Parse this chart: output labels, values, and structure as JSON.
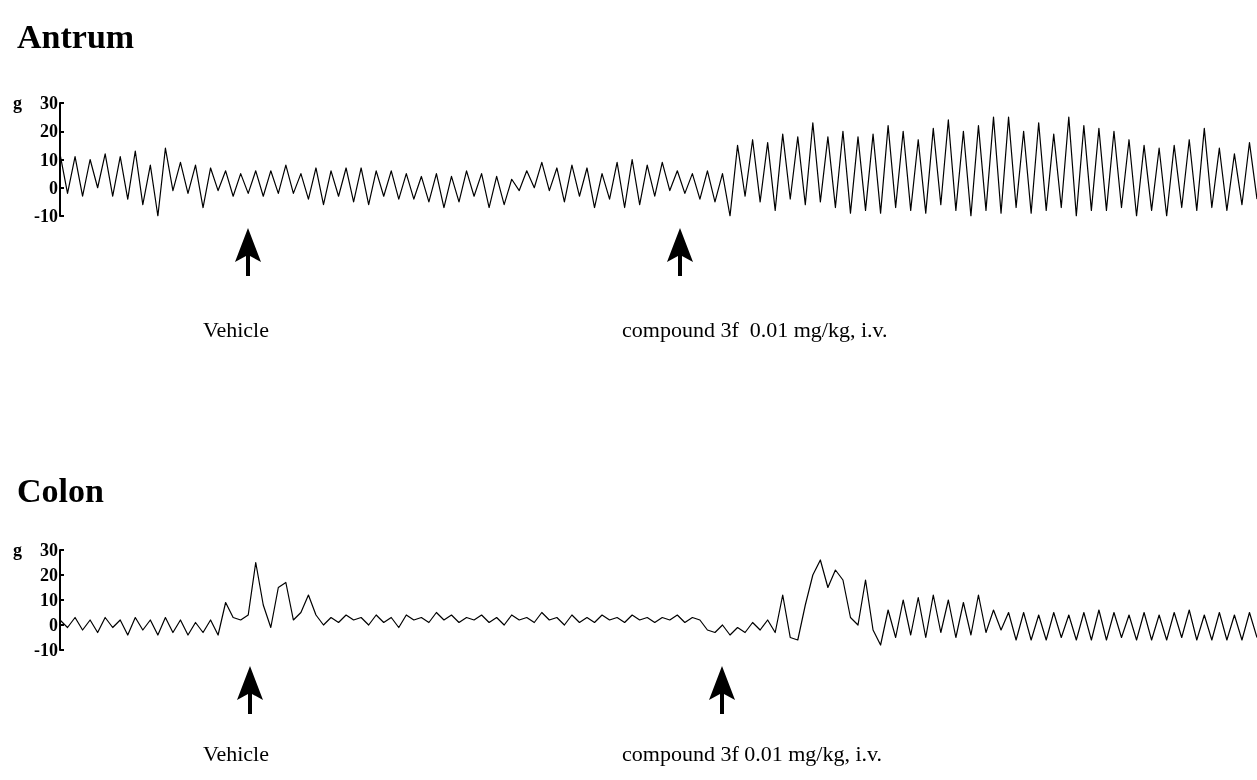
{
  "chart_data": [
    {
      "type": "line",
      "title": "Antrum",
      "ylabel": "g",
      "ylim": [
        -10,
        30
      ],
      "yticks": [
        -10,
        0,
        10,
        20,
        30
      ],
      "grid": false,
      "tick_labels": "y",
      "annotations": [
        "Vehicle",
        "compound 3f  0.01 mg/kg, i.v."
      ],
      "categories": [
        null,
        null,
        null,
        null,
        null,
        null,
        null,
        null,
        null,
        null,
        null,
        null,
        null,
        null,
        null,
        null,
        null,
        null,
        null,
        null,
        null,
        null,
        null,
        null,
        null,
        null,
        null,
        null,
        null,
        null,
        null,
        null,
        null,
        null,
        null,
        null,
        null,
        null,
        null,
        null,
        null,
        null,
        null,
        null,
        null,
        null,
        null,
        null,
        null,
        null,
        null,
        null,
        null,
        null,
        null,
        null,
        null,
        null,
        null,
        null,
        null,
        null,
        null,
        null,
        null,
        null,
        null,
        null,
        null,
        null,
        null,
        null,
        null,
        null,
        null,
        null,
        null,
        null,
        null,
        null,
        null,
        null,
        null,
        null,
        null,
        null,
        null,
        null,
        null,
        null,
        null,
        null,
        null,
        null,
        null,
        null,
        null,
        null,
        null,
        null,
        null,
        null,
        null,
        null,
        null,
        null,
        null,
        null,
        null,
        null,
        null,
        null,
        null,
        null,
        null,
        null,
        null,
        null,
        null,
        null,
        null,
        null,
        null,
        null,
        null,
        null,
        null,
        null,
        null,
        null,
        null,
        null,
        null,
        null,
        null,
        null,
        null,
        null,
        null,
        null,
        null,
        null,
        null,
        null,
        null,
        null,
        null,
        null,
        null,
        null,
        null,
        null,
        null,
        null,
        null,
        null,
        null,
        null,
        null,
        null
      ],
      "series": [
        {
          "color": "#000000",
          "values": [
            12,
            -2,
            11,
            -3,
            10,
            0,
            12,
            -3,
            11,
            -4,
            13,
            -6,
            8,
            -10,
            14,
            -1,
            9,
            -2,
            8,
            -7,
            7,
            -1,
            6,
            -3,
            5,
            -2,
            6,
            -3,
            6,
            -2,
            8,
            -2,
            5,
            -4,
            7,
            -6,
            6,
            -3,
            7,
            -5,
            7,
            -6,
            6,
            -3,
            6,
            -4,
            5,
            -4,
            4,
            -5,
            5,
            -7,
            4,
            -5,
            6,
            -3,
            5,
            -7,
            4,
            -6,
            3,
            -1,
            6,
            0,
            9,
            -1,
            7,
            -5,
            8,
            -3,
            7,
            -7,
            5,
            -4,
            9,
            -7,
            10,
            -6,
            8,
            -3,
            9,
            -1,
            6,
            -2,
            5,
            -4,
            6,
            -5,
            5,
            -10,
            15,
            -3,
            17,
            -5,
            16,
            -8,
            19,
            -4,
            18,
            -6,
            23,
            -5,
            18,
            -7,
            20,
            -9,
            18,
            -8,
            19,
            -9,
            22,
            -7,
            20,
            -8,
            17,
            -9,
            21,
            -6,
            24,
            -8,
            20,
            -10,
            22,
            -8,
            25,
            -9,
            25,
            -7,
            20,
            -9,
            23,
            -8,
            19,
            -7,
            25,
            -10,
            22,
            -8,
            21,
            -8,
            20,
            -7,
            17,
            -10,
            15,
            -8,
            14,
            -10,
            15,
            -7,
            17,
            -8,
            21,
            -7,
            14,
            -8,
            12,
            -6,
            16,
            -4
          ]
        }
      ]
    },
    {
      "type": "line",
      "title": "Colon",
      "ylabel": "g",
      "ylim": [
        -10,
        30
      ],
      "yticks": [
        -10,
        0,
        10,
        20,
        30
      ],
      "grid": false,
      "tick_labels": "y",
      "annotations": [
        "Vehicle",
        "compound 3f 0.01 mg/kg, i.v."
      ],
      "categories": [
        null,
        null,
        null,
        null,
        null,
        null,
        null,
        null,
        null,
        null,
        null,
        null,
        null,
        null,
        null,
        null,
        null,
        null,
        null,
        null,
        null,
        null,
        null,
        null,
        null,
        null,
        null,
        null,
        null,
        null,
        null,
        null,
        null,
        null,
        null,
        null,
        null,
        null,
        null,
        null,
        null,
        null,
        null,
        null,
        null,
        null,
        null,
        null,
        null,
        null,
        null,
        null,
        null,
        null,
        null,
        null,
        null,
        null,
        null,
        null,
        null,
        null,
        null,
        null,
        null,
        null,
        null,
        null,
        null,
        null,
        null,
        null,
        null,
        null,
        null,
        null,
        null,
        null,
        null,
        null,
        null,
        null,
        null,
        null,
        null,
        null,
        null,
        null,
        null,
        null,
        null,
        null,
        null,
        null,
        null,
        null,
        null,
        null,
        null,
        null,
        null,
        null,
        null,
        null,
        null,
        null,
        null,
        null,
        null,
        null,
        null,
        null,
        null,
        null,
        null,
        null,
        null,
        null,
        null,
        null,
        null,
        null,
        null,
        null,
        null,
        null,
        null,
        null,
        null,
        null,
        null,
        null,
        null,
        null,
        null,
        null,
        null,
        null,
        null,
        null,
        null,
        null,
        null,
        null,
        null,
        null,
        null,
        null,
        null,
        null,
        null,
        null,
        null,
        null,
        null,
        null,
        null,
        null,
        null,
        null
      ],
      "series": [
        {
          "color": "#000000",
          "values": [
            2,
            -1,
            3,
            -2,
            2,
            -3,
            3,
            -1,
            2,
            -4,
            3,
            -2,
            2,
            -4,
            3,
            -3,
            2,
            -4,
            1,
            -3,
            2,
            -4,
            9,
            3,
            2,
            4,
            25,
            8,
            -1,
            15,
            17,
            2,
            5,
            12,
            4,
            0,
            3,
            1,
            4,
            2,
            3,
            0,
            4,
            1,
            3,
            -1,
            4,
            2,
            3,
            1,
            5,
            2,
            4,
            1,
            3,
            2,
            4,
            1,
            3,
            0,
            4,
            2,
            3,
            1,
            5,
            2,
            3,
            0,
            4,
            1,
            3,
            1,
            4,
            2,
            3,
            1,
            4,
            2,
            3,
            1,
            3,
            2,
            4,
            1,
            3,
            2,
            -2,
            -3,
            0,
            -4,
            -1,
            -3,
            1,
            -2,
            2,
            -3,
            12,
            -5,
            -6,
            8,
            20,
            26,
            15,
            22,
            18,
            3,
            0,
            18,
            -2,
            -8,
            6,
            -5,
            10,
            -4,
            11,
            -5,
            12,
            -3,
            10,
            -5,
            9,
            -4,
            12,
            -3,
            6,
            -2,
            5,
            -6,
            5,
            -6,
            4,
            -6,
            5,
            -5,
            4,
            -6,
            5,
            -6,
            6,
            -6,
            5,
            -5,
            4,
            -6,
            5,
            -6,
            4,
            -6,
            5,
            -5,
            6,
            -6,
            4,
            -6,
            5,
            -6,
            4,
            -6,
            5,
            -5
          ]
        }
      ]
    }
  ]
}
